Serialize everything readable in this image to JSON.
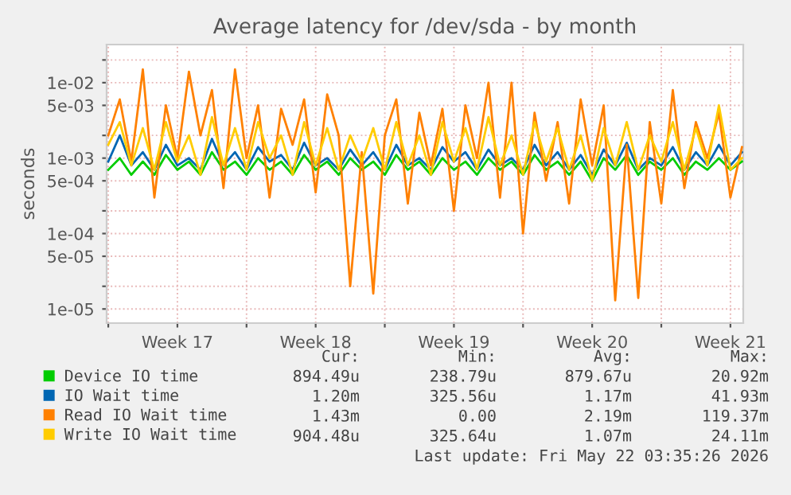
{
  "chart_data": {
    "type": "line",
    "title": "Average latency for /dev/sda - by month",
    "ylabel": "seconds",
    "x": [
      "2026-04-20T00:00",
      "2026-04-20T14:00",
      "2026-04-21T04:00",
      "2026-04-21T18:00",
      "2026-04-22T08:00",
      "2026-04-22T22:00",
      "2026-04-23T12:00",
      "2026-04-24T02:00",
      "2026-04-24T16:00",
      "2026-04-25T06:00",
      "2026-04-25T20:00",
      "2026-04-26T10:00",
      "2026-04-27T00:00",
      "2026-04-27T14:00",
      "2026-04-28T04:00",
      "2026-04-28T18:00",
      "2026-04-29T08:00",
      "2026-04-29T22:00",
      "2026-04-30T12:00",
      "2026-05-01T02:00",
      "2026-05-01T16:00",
      "2026-05-02T06:00",
      "2026-05-02T20:00",
      "2026-05-03T10:00",
      "2026-05-04T00:00",
      "2026-05-04T14:00",
      "2026-05-05T04:00",
      "2026-05-05T18:00",
      "2026-05-06T08:00",
      "2026-05-06T22:00",
      "2026-05-07T12:00",
      "2026-05-08T02:00",
      "2026-05-08T16:00",
      "2026-05-09T06:00",
      "2026-05-09T20:00",
      "2026-05-10T10:00",
      "2026-05-11T00:00",
      "2026-05-11T14:00",
      "2026-05-12T04:00",
      "2026-05-12T18:00",
      "2026-05-13T08:00",
      "2026-05-13T22:00",
      "2026-05-14T12:00",
      "2026-05-15T02:00",
      "2026-05-15T16:00",
      "2026-05-16T06:00",
      "2026-05-16T20:00",
      "2026-05-17T10:00",
      "2026-05-18T00:00",
      "2026-05-18T14:00",
      "2026-05-19T04:00",
      "2026-05-19T18:00",
      "2026-05-20T08:00",
      "2026-05-20T22:00",
      "2026-05-21T12:00",
      "2026-05-22T02:00"
    ],
    "series": [
      {
        "name": "Device IO time",
        "color": "#00cc00",
        "values": [
          0.0007,
          0.001,
          0.0006,
          0.0009,
          0.0006,
          0.0011,
          0.0007,
          0.0009,
          0.0006,
          0.0012,
          0.0007,
          0.0009,
          0.0006,
          0.001,
          0.0007,
          0.0009,
          0.0006,
          0.0011,
          0.0007,
          0.0009,
          0.0006,
          0.001,
          0.0007,
          0.0009,
          0.0006,
          0.0011,
          0.0007,
          0.0009,
          0.0006,
          0.001,
          0.0007,
          0.0009,
          0.0006,
          0.001,
          0.0007,
          0.0009,
          0.0006,
          0.0011,
          0.0007,
          0.0009,
          0.0006,
          0.0009,
          0.0005,
          0.001,
          0.0007,
          0.0011,
          0.0006,
          0.0009,
          0.0007,
          0.001,
          0.0006,
          0.0009,
          0.0007,
          0.001,
          0.0007,
          0.0009
        ]
      },
      {
        "name": "IO Wait time",
        "color": "#0066b3",
        "values": [
          0.0009,
          0.002,
          0.0008,
          0.0012,
          0.0007,
          0.0015,
          0.0008,
          0.001,
          0.0007,
          0.0018,
          0.0008,
          0.0012,
          0.0007,
          0.0014,
          0.0009,
          0.0011,
          0.0007,
          0.0016,
          0.0008,
          0.001,
          0.0007,
          0.0013,
          0.0008,
          0.0012,
          0.0007,
          0.0015,
          0.0008,
          0.001,
          0.0007,
          0.0014,
          0.0009,
          0.0012,
          0.0007,
          0.0013,
          0.0008,
          0.001,
          0.0007,
          0.0015,
          0.0008,
          0.0012,
          0.0007,
          0.0011,
          0.0006,
          0.0013,
          0.0008,
          0.0016,
          0.0007,
          0.001,
          0.0008,
          0.0014,
          0.0007,
          0.0012,
          0.0008,
          0.0015,
          0.0008,
          0.0012
        ]
      },
      {
        "name": "Read IO Wait time",
        "color": "#ff8000",
        "values": [
          0.002,
          0.006,
          0.0009,
          0.015,
          0.0003,
          0.005,
          0.001,
          0.014,
          0.002,
          0.008,
          0.0004,
          0.015,
          0.001,
          0.005,
          0.0003,
          0.0045,
          0.0015,
          0.006,
          0.00035,
          0.007,
          0.002,
          2e-05,
          0.0012,
          1.6e-05,
          0.002,
          0.006,
          0.00025,
          0.004,
          0.0008,
          0.0045,
          0.0002,
          0.005,
          0.001,
          0.01,
          0.0003,
          0.01,
          0.0001,
          0.004,
          0.0005,
          0.003,
          0.00025,
          0.006,
          0.0008,
          0.005,
          1.3e-05,
          0.0015,
          1.4e-05,
          0.003,
          0.00025,
          0.008,
          0.0004,
          0.003,
          0.001,
          0.004,
          0.0003,
          0.0014
        ]
      },
      {
        "name": "Write IO Wait time",
        "color": "#ffcc00",
        "values": [
          0.0015,
          0.003,
          0.0008,
          0.0025,
          0.0007,
          0.003,
          0.0009,
          0.002,
          0.0006,
          0.0035,
          0.0008,
          0.0025,
          0.0007,
          0.003,
          0.001,
          0.002,
          0.0006,
          0.003,
          0.0008,
          0.0025,
          0.0007,
          0.002,
          0.0009,
          0.0025,
          0.0007,
          0.003,
          0.0008,
          0.002,
          0.0006,
          0.003,
          0.0009,
          0.0025,
          0.0007,
          0.0035,
          0.0008,
          0.002,
          0.0006,
          0.003,
          0.0009,
          0.0025,
          0.0007,
          0.002,
          0.0005,
          0.0025,
          0.0008,
          0.003,
          0.0007,
          0.002,
          0.0009,
          0.003,
          0.0007,
          0.0025,
          0.0008,
          0.005,
          0.0007,
          0.001
        ]
      }
    ],
    "log": "y",
    "xlim": [
      "2026-04-19T22:00",
      "2026-05-22T03:35"
    ],
    "ylim": [
      6.5e-06,
      0.032
    ],
    "xticks": [
      {
        "value": "2026-04-20",
        "label": null
      },
      {
        "value": "2026-04-23T12:00",
        "label": "Week 17"
      },
      {
        "value": "2026-04-27",
        "label": null
      },
      {
        "value": "2026-04-30T12:00",
        "label": "Week 18"
      },
      {
        "value": "2026-05-04",
        "label": null
      },
      {
        "value": "2026-05-07T12:00",
        "label": "Week 19"
      },
      {
        "value": "2026-05-11",
        "label": null
      },
      {
        "value": "2026-05-14T12:00",
        "label": "Week 20"
      },
      {
        "value": "2026-05-18",
        "label": null
      },
      {
        "value": "2026-05-21T12:00",
        "label": "Week 21"
      }
    ],
    "yticks": [
      {
        "value": 1e-05,
        "label": "1e-05"
      },
      {
        "value": 2e-05,
        "label": null
      },
      {
        "value": 5e-05,
        "label": "5e-05"
      },
      {
        "value": 0.0001,
        "label": "1e-04"
      },
      {
        "value": 0.0002,
        "label": null
      },
      {
        "value": 0.0005,
        "label": "5e-04"
      },
      {
        "value": 0.001,
        "label": "1e-03"
      },
      {
        "value": 0.002,
        "label": null
      },
      {
        "value": 0.005,
        "label": "5e-03"
      },
      {
        "value": 0.01,
        "label": "1e-02"
      },
      {
        "value": 0.02,
        "label": null
      }
    ],
    "grid": true,
    "legend": "bottom",
    "line_style": "solid",
    "marker": "none",
    "annotations": [
      "Cur:",
      "Min:",
      "Avg:",
      "Max:",
      "894.49u",
      "238.79u",
      "879.67u",
      "20.92m",
      "1.20m",
      "325.56u",
      "1.17m",
      "41.93m",
      "1.43m",
      "0.00",
      "2.19m",
      "119.37m",
      "904.48u",
      "325.64u",
      "1.07m",
      "24.11m",
      "Last update: Fri May 22 03:35:26 2026"
    ]
  }
}
